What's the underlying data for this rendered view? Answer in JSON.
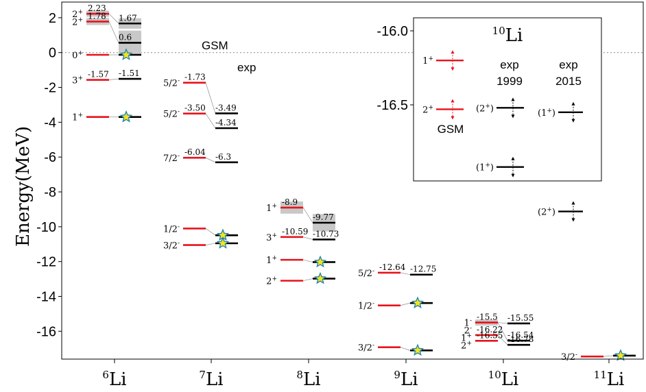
{
  "chart_data": {
    "type": "level-scheme",
    "ylabel": "Energy(MeV)",
    "ylim": [
      -17.6,
      2.9
    ],
    "yticks": [
      2,
      0,
      -2,
      -4,
      -6,
      -8,
      -10,
      -12,
      -14,
      -16
    ],
    "ytick_labels": [
      "2",
      "0",
      "-2",
      "-4",
      "-6",
      "-8",
      "-10",
      "-12",
      "-14",
      "-16"
    ],
    "zero_line": true,
    "model_labels": [
      "GSM",
      "exp"
    ],
    "series": [
      {
        "name": "GSM",
        "color": "#e8121b"
      },
      {
        "name": "exp",
        "color": "#000000"
      }
    ],
    "isotopes": [
      {
        "mass": "6",
        "symbol": "Li",
        "gsm": [
          {
            "spin": "2+",
            "energy": 2.23,
            "label": "2.23",
            "width": 0.35
          },
          {
            "spin": "2+",
            "energy": 1.78,
            "label": "1.78",
            "width": 0.4
          },
          {
            "spin": "0+",
            "energy": -0.13,
            "label": ""
          },
          {
            "spin": "3+",
            "energy": -1.57,
            "label": "-1.57"
          },
          {
            "spin": "1+",
            "energy": -3.7,
            "label": ""
          }
        ],
        "exp": [
          {
            "energy": 1.67,
            "label": "1.67",
            "width": 0.6
          },
          {
            "energy": 0.56,
            "label": "0.6",
            "width": 1.4
          },
          {
            "energy": -0.13,
            "label": "",
            "star": true
          },
          {
            "energy": -1.51,
            "label": "-1.51"
          },
          {
            "energy": -3.7,
            "label": "",
            "star": true
          }
        ]
      },
      {
        "mass": "7",
        "symbol": "Li",
        "gsm": [
          {
            "spin": "5/2-",
            "energy": -1.73,
            "label": "-1.73"
          },
          {
            "spin": "5/2-",
            "energy": -3.5,
            "label": "-3.50"
          },
          {
            "spin": "7/2-",
            "energy": -6.04,
            "label": "-6.04"
          },
          {
            "spin": "1/2-",
            "energy": -10.1,
            "label": ""
          },
          {
            "spin": "3/2-",
            "energy": -11.05,
            "label": ""
          }
        ],
        "exp": [
          {
            "energy": -3.49,
            "label": "-3.49"
          },
          {
            "energy": -4.34,
            "label": "-4.34"
          },
          {
            "energy": -6.3,
            "label": "-6.3"
          },
          {
            "energy": -10.49,
            "label": "",
            "star": true
          },
          {
            "energy": -10.95,
            "label": "",
            "star": true
          }
        ]
      },
      {
        "mass": "8",
        "symbol": "Li",
        "gsm": [
          {
            "spin": "1+",
            "energy": -8.9,
            "label": "-8.9",
            "width": 0.7
          },
          {
            "spin": "3+",
            "energy": -10.59,
            "label": "-10.59"
          },
          {
            "spin": "1+",
            "energy": -11.9,
            "label": ""
          },
          {
            "spin": "2+",
            "energy": -13.1,
            "label": ""
          }
        ],
        "exp": [
          {
            "energy": -9.77,
            "label": "-9.77",
            "width": 1.0
          },
          {
            "energy": -10.73,
            "label": "-10.73"
          },
          {
            "energy": -12.03,
            "label": "",
            "star": true
          },
          {
            "energy": -12.98,
            "label": "",
            "star": true
          }
        ]
      },
      {
        "mass": "9",
        "symbol": "Li",
        "gsm": [
          {
            "spin": "5/2-",
            "energy": -12.64,
            "label": "-12.64"
          },
          {
            "spin": "1/2-",
            "energy": -14.52,
            "label": ""
          },
          {
            "spin": "3/2-",
            "energy": -16.92,
            "label": ""
          }
        ],
        "exp": [
          {
            "energy": -12.75,
            "label": "-12.75"
          },
          {
            "energy": -14.38,
            "label": "",
            "star": true
          },
          {
            "energy": -17.1,
            "label": "",
            "star": true
          }
        ]
      },
      {
        "mass": "10",
        "symbol": "Li",
        "gsm": [
          {
            "spin": "1-",
            "energy": -15.5,
            "label": "-15.5",
            "width": 0.35
          },
          {
            "spin": "2-",
            "energy": -15.5,
            "label": ""
          },
          {
            "spin": "1+",
            "energy": -16.22,
            "label": "-16.22"
          },
          {
            "spin": "2+",
            "energy": -16.55,
            "label": "-16.55"
          }
        ],
        "exp": [
          {
            "energy": -15.55,
            "label": "-15.55"
          },
          {
            "energy": -16.54,
            "label": "-16.54"
          },
          {
            "energy": -16.78,
            "label": "-16.78"
          }
        ]
      },
      {
        "mass": "11",
        "symbol": "Li",
        "gsm": [
          {
            "spin": "3/2-",
            "energy": -17.45,
            "label": ""
          }
        ],
        "exp": [
          {
            "energy": -17.4,
            "label": "",
            "star": true
          }
        ]
      }
    ],
    "inset": {
      "title_mass": "10",
      "title_symbol": "Li",
      "ylim": [
        -16.72,
        -15.98
      ],
      "yticks": [
        -16.0,
        -16.5
      ],
      "ytick_labels": [
        "-16.0",
        "-16.5"
      ],
      "columns": [
        {
          "title": "GSM",
          "title_lines": [
            "GSM"
          ],
          "color": "#e8121b",
          "levels": [
            {
              "spin": "1+",
              "energy": -16.2
            },
            {
              "spin": "2+",
              "energy": -16.53
            }
          ]
        },
        {
          "title": "exp 1999",
          "title_lines": [
            "exp",
            "1999"
          ],
          "color": "#000000",
          "levels": [
            {
              "spin": "(2+)",
              "energy": -16.52
            },
            {
              "spin": "(1+)",
              "energy": -16.92
            }
          ]
        },
        {
          "title": "exp 2015",
          "title_lines": [
            "exp",
            "2015"
          ],
          "color": "#000000",
          "levels": [
            {
              "spin": "(1+)",
              "energy": -16.55
            },
            {
              "spin": "(2+)",
              "energy": -17.22
            }
          ]
        }
      ]
    }
  }
}
